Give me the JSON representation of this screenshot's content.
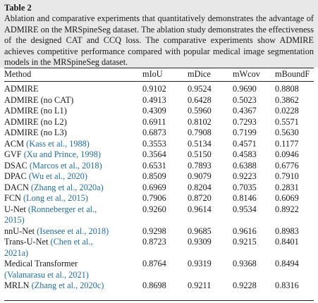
{
  "table": {
    "label": "Table 2",
    "caption": "Ablation and comparative experiments that quantitatively demonstrates the advantage of ADMIRE on the MRSpineSeg dataset. The ablation study demonstrates the effectiveness of the designed CAT and CCQ loss. The comparative experiments show ADMIRE achieves competitive performance compared with popular medical image segmentation models in the MRSpineSeg dataset.",
    "columns": [
      "Method",
      "mIoU",
      "mDice",
      "mWcov",
      "mBoundF"
    ],
    "rows": [
      {
        "method": "ADMIRE",
        "cite": "",
        "miou": "0.9102",
        "mdice": "0.9524",
        "mwcov": "0.9690",
        "mboundf": "0.8808"
      },
      {
        "method": "ADMIRE (no CAT)",
        "cite": "",
        "miou": "0.4913",
        "mdice": "0.6428",
        "mwcov": "0.5023",
        "mboundf": "0.3862"
      },
      {
        "method": "ADMIRE (no L1)",
        "cite": "",
        "miou": "0.4309",
        "mdice": "0.5960",
        "mwcov": "0.4367",
        "mboundf": "0.0228"
      },
      {
        "method": "ADMIRE (no L2)",
        "cite": "",
        "miou": "0.6911",
        "mdice": "0.8102",
        "mwcov": "0.7293",
        "mboundf": "0.5571"
      },
      {
        "method": "ADMIRE (no L3)",
        "cite": "",
        "miou": "0.6873",
        "mdice": "0.7908",
        "mwcov": "0.7199",
        "mboundf": "0.5630"
      },
      {
        "method": "ACM ",
        "cite": "(Kass et al., 1988)",
        "miou": "0.3553",
        "mdice": "0.5134",
        "mwcov": "0.4571",
        "mboundf": "0.1177"
      },
      {
        "method": "GVF ",
        "cite": "(Xu and Prince, 1998)",
        "miou": "0.3564",
        "mdice": "0.5150",
        "mwcov": "0.4583",
        "mboundf": "0.0946"
      },
      {
        "method": "DSAC ",
        "cite": "(Marcos et al., 2018)",
        "miou": "0.6531",
        "mdice": "0.7893",
        "mwcov": "0.6388",
        "mboundf": "0.6776"
      },
      {
        "method": "DPAC ",
        "cite": "(Wu et al., 2020)",
        "miou": "0.8509",
        "mdice": "0.9079",
        "mwcov": "0.9223",
        "mboundf": "0.7910"
      },
      {
        "method": "DACN ",
        "cite": "(Zhang et al., 2020a)",
        "miou": "0.6969",
        "mdice": "0.8204",
        "mwcov": "0.7035",
        "mboundf": "0.2831"
      },
      {
        "method": "FCN ",
        "cite": "(Long et al., 2015)",
        "miou": "0.7906",
        "mdice": "0.8720",
        "mwcov": "0.8146",
        "mboundf": "0.6069"
      },
      {
        "method": "U-Net ",
        "cite": "(Ronneberger et al., 2015)",
        "miou": "0.9260",
        "mdice": "0.9614",
        "mwcov": "0.9534",
        "mboundf": "0.8922"
      },
      {
        "method": "nnU-Net ",
        "cite": "(Isensee et al., 2018)",
        "miou": "0.9298",
        "mdice": "0.9685",
        "mwcov": "0.9616",
        "mboundf": "0.8983"
      },
      {
        "method": "Trans-U-Net ",
        "cite": "(Chen et al., 2021a)",
        "miou": "0.8723",
        "mdice": "0.9309",
        "mwcov": "0.9215",
        "mboundf": "0.8401"
      },
      {
        "method": "Medical Transformer ",
        "cite": "(Valanarasu et al., 2021)",
        "miou": "0.8764",
        "mdice": "0.9319",
        "mwcov": "0.9368",
        "mboundf": "0.8494"
      },
      {
        "method": "MRLN ",
        "cite": "(Zhang et al., 2020c)",
        "miou": "0.8698",
        "mdice": "0.9211",
        "mwcov": "0.9228",
        "mboundf": "0.8316"
      }
    ]
  }
}
